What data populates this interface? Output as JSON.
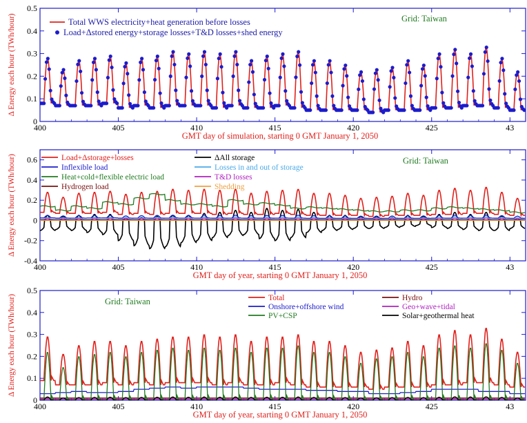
{
  "chart_data": [
    {
      "type": "line",
      "grid_tag": "Grid: Taiwan",
      "xlabel": "GMT day of simulation, starting 0 GMT January 1, 2050",
      "ylabel": "Δ Energy each hour (TWh/hour)",
      "xlim": [
        400,
        431
      ],
      "ylim": [
        0,
        0.5
      ],
      "xticks": [
        "400",
        "405",
        "410",
        "415",
        "420",
        "425",
        "43"
      ],
      "yticks": [
        "0",
        "0.1",
        "0.2",
        "0.3",
        "0.4",
        "0.5"
      ],
      "legend_position": "top-left",
      "series": [
        {
          "name": "Total WWS electricity+heat generation before losses",
          "color": "#e0201b",
          "style": "line",
          "daily_peaks": [
            0.28,
            0.23,
            0.27,
            0.28,
            0.29,
            0.26,
            0.28,
            0.29,
            0.31,
            0.3,
            0.31,
            0.3,
            0.31,
            0.27,
            0.29,
            0.3,
            0.31,
            0.27,
            0.27,
            0.25,
            0.22,
            0.23,
            0.24,
            0.27,
            0.25,
            0.3,
            0.32,
            0.3,
            0.33,
            0.28,
            0.22
          ],
          "daily_lows": [
            0.08,
            0.07,
            0.07,
            0.07,
            0.08,
            0.06,
            0.07,
            0.06,
            0.07,
            0.07,
            0.07,
            0.06,
            0.07,
            0.06,
            0.06,
            0.07,
            0.06,
            0.05,
            0.05,
            0.05,
            0.05,
            0.04,
            0.05,
            0.05,
            0.05,
            0.06,
            0.06,
            0.07,
            0.07,
            0.06,
            0.05
          ]
        },
        {
          "name": "Load+Δstored energy+storage losses+T&D losses+shed energy",
          "color": "#1c1ccc",
          "style": "dots",
          "daily_peaks": [
            0.28,
            0.23,
            0.27,
            0.28,
            0.29,
            0.26,
            0.28,
            0.29,
            0.31,
            0.3,
            0.31,
            0.3,
            0.31,
            0.27,
            0.29,
            0.3,
            0.31,
            0.27,
            0.27,
            0.25,
            0.22,
            0.23,
            0.24,
            0.27,
            0.25,
            0.3,
            0.32,
            0.3,
            0.33,
            0.28,
            0.22
          ],
          "daily_lows": [
            0.08,
            0.07,
            0.07,
            0.07,
            0.08,
            0.06,
            0.07,
            0.06,
            0.07,
            0.07,
            0.07,
            0.06,
            0.07,
            0.06,
            0.06,
            0.07,
            0.06,
            0.05,
            0.05,
            0.05,
            0.05,
            0.04,
            0.05,
            0.05,
            0.05,
            0.06,
            0.06,
            0.07,
            0.07,
            0.06,
            0.05
          ]
        }
      ]
    },
    {
      "type": "line",
      "grid_tag": "Grid: Taiwan",
      "xlabel": "GMT day of year, starting 0 GMT January 1, 2050",
      "ylabel": "Δ Energy each hour (TWh/hour)",
      "xlim": [
        400,
        431
      ],
      "ylim": [
        -0.4,
        0.7
      ],
      "xticks": [
        "400",
        "405",
        "410",
        "415",
        "420",
        "425",
        "43"
      ],
      "yticks": [
        "-0.4",
        "-0.2",
        "0",
        "0.2",
        "0.4",
        "0.6"
      ],
      "legend_position": "top-left",
      "series": [
        {
          "name": "Load+Δstorage+losses",
          "color": "#e0201b",
          "daily_peaks": [
            0.28,
            0.23,
            0.27,
            0.28,
            0.29,
            0.26,
            0.28,
            0.29,
            0.31,
            0.3,
            0.31,
            0.3,
            0.31,
            0.27,
            0.29,
            0.3,
            0.31,
            0.27,
            0.27,
            0.25,
            0.22,
            0.23,
            0.24,
            0.27,
            0.25,
            0.3,
            0.32,
            0.3,
            0.33,
            0.28,
            0.22
          ],
          "daily_lows": [
            0.08,
            0.07,
            0.07,
            0.07,
            0.08,
            0.06,
            0.07,
            0.06,
            0.07,
            0.07,
            0.07,
            0.06,
            0.07,
            0.06,
            0.06,
            0.07,
            0.06,
            0.05,
            0.05,
            0.05,
            0.05,
            0.04,
            0.05,
            0.05,
            0.05,
            0.06,
            0.06,
            0.07,
            0.07,
            0.06,
            0.05
          ]
        },
        {
          "name": "ΔAll storage",
          "color": "#000000",
          "daily_peaks": [
            0.05,
            0.04,
            0.05,
            0.06,
            0.06,
            0.02,
            0.03,
            0.04,
            0.05,
            0.05,
            0.07,
            0.08,
            0.1,
            0.08,
            0.12,
            0.1,
            0.11,
            0.08,
            0.05,
            0.05,
            0.04,
            0.04,
            0.03,
            0.05,
            0.04,
            0.06,
            0.08,
            0.06,
            0.08,
            0.04,
            0.02
          ],
          "daily_lows": [
            -0.1,
            -0.09,
            -0.1,
            -0.12,
            -0.14,
            -0.2,
            -0.25,
            -0.28,
            -0.26,
            -0.22,
            -0.2,
            -0.17,
            -0.15,
            -0.14,
            -0.18,
            -0.2,
            -0.17,
            -0.12,
            -0.1,
            -0.09,
            -0.08,
            -0.08,
            -0.07,
            -0.06,
            -0.05,
            -0.07,
            -0.08,
            -0.09,
            -0.1,
            -0.1,
            -0.08
          ]
        },
        {
          "name": "Inflexible load",
          "color": "#1c1ccc",
          "daily_peaks": [
            0.05,
            0.045,
            0.048,
            0.05,
            0.05,
            0.045,
            0.048,
            0.05,
            0.052,
            0.05,
            0.052,
            0.05,
            0.052,
            0.048,
            0.05,
            0.05,
            0.052,
            0.048,
            0.047,
            0.045,
            0.042,
            0.043,
            0.044,
            0.047,
            0.045,
            0.05,
            0.052,
            0.05,
            0.053,
            0.048,
            0.042
          ],
          "daily_lows": [
            0.025,
            0.022,
            0.023,
            0.024,
            0.025,
            0.022,
            0.023,
            0.022,
            0.023,
            0.023,
            0.023,
            0.022,
            0.023,
            0.022,
            0.022,
            0.023,
            0.022,
            0.021,
            0.021,
            0.021,
            0.021,
            0.02,
            0.021,
            0.021,
            0.021,
            0.022,
            0.022,
            0.023,
            0.023,
            0.022,
            0.021
          ]
        },
        {
          "name": "Losses in and out of storage",
          "color": "#4aa8e8",
          "daily_peaks": [
            0.03,
            0.028,
            0.03,
            0.032,
            0.033,
            0.03,
            0.032,
            0.033,
            0.035,
            0.034,
            0.035,
            0.034,
            0.035,
            0.031,
            0.033,
            0.034,
            0.035,
            0.031,
            0.031,
            0.029,
            0.026,
            0.027,
            0.028,
            0.031,
            0.029,
            0.034,
            0.036,
            0.034,
            0.037,
            0.032,
            0.026
          ],
          "daily_lows": [
            0.01,
            0.01,
            0.01,
            0.01,
            0.01,
            0.01,
            0.01,
            0.01,
            0.01,
            0.01,
            0.01,
            0.01,
            0.01,
            0.01,
            0.01,
            0.01,
            0.01,
            0.01,
            0.01,
            0.01,
            0.01,
            0.01,
            0.01,
            0.01,
            0.01,
            0.01,
            0.01,
            0.01,
            0.01,
            0.01,
            0.01
          ]
        },
        {
          "name": "Heat+cold+flexible electric load",
          "color": "#1f7a1f",
          "daily_levels": [
            0.14,
            0.1,
            0.14,
            0.12,
            0.18,
            0.16,
            0.22,
            0.26,
            0.2,
            0.16,
            0.16,
            0.14,
            0.2,
            0.16,
            0.17,
            0.15,
            0.12,
            0.13,
            0.12,
            0.11,
            0.1,
            0.09,
            0.09,
            0.1,
            0.1,
            0.12,
            0.13,
            0.12,
            0.11,
            0.1,
            0.08
          ]
        },
        {
          "name": "T&D losses",
          "color": "#b020c0",
          "daily_peaks": [
            0.02,
            0.018,
            0.02,
            0.02,
            0.021,
            0.019,
            0.02,
            0.021,
            0.022,
            0.021,
            0.022,
            0.021,
            0.022,
            0.02,
            0.021,
            0.021,
            0.022,
            0.02,
            0.02,
            0.019,
            0.017,
            0.018,
            0.018,
            0.02,
            0.019,
            0.021,
            0.022,
            0.021,
            0.023,
            0.02,
            0.017
          ],
          "daily_lows": [
            0.005,
            0.005,
            0.005,
            0.005,
            0.005,
            0.005,
            0.005,
            0.005,
            0.005,
            0.005,
            0.005,
            0.005,
            0.005,
            0.005,
            0.005,
            0.005,
            0.005,
            0.005,
            0.005,
            0.005,
            0.005,
            0.005,
            0.005,
            0.005,
            0.005,
            0.005,
            0.005,
            0.005,
            0.005,
            0.005,
            0.005
          ]
        },
        {
          "name": "Hydrogen load",
          "color": "#7a1010",
          "daily_levels": [
            0.005,
            0.005,
            0.005,
            0.005,
            0.005,
            0.005,
            0.005,
            0.005,
            0.005,
            0.005,
            0.005,
            0.005,
            0.005,
            0.005,
            0.005,
            0.005,
            0.005,
            0.005,
            0.005,
            0.005,
            0.005,
            0.005,
            0.005,
            0.005,
            0.005,
            0.005,
            0.005,
            0.005,
            0.005,
            0.005,
            0.005
          ]
        },
        {
          "name": "Shedding",
          "color": "#f0a040",
          "daily_levels": [
            0,
            0,
            0,
            0,
            0,
            0,
            0,
            0,
            0,
            0,
            0,
            0,
            0,
            0,
            0,
            0,
            0,
            0,
            0,
            0,
            0,
            0,
            0,
            0,
            0,
            0,
            0,
            0,
            0,
            0,
            0
          ]
        }
      ]
    },
    {
      "type": "line",
      "grid_tag": "Grid: Taiwan",
      "xlabel": "GMT day of year, starting 0 GMT January 1, 2050",
      "ylabel": "Δ Energy each hour (TWh/hour)",
      "xlim": [
        400,
        431
      ],
      "ylim": [
        0,
        0.5
      ],
      "xticks": [
        "400",
        "405",
        "410",
        "415",
        "420",
        "425",
        "43"
      ],
      "yticks": [
        "0",
        "0.1",
        "0.2",
        "0.3",
        "0.4",
        "0.5"
      ],
      "legend_position": "top-center",
      "series": [
        {
          "name": "Total",
          "color": "#e0201b",
          "daily_peaks": [
            0.29,
            0.21,
            0.25,
            0.27,
            0.27,
            0.25,
            0.27,
            0.28,
            0.29,
            0.29,
            0.3,
            0.29,
            0.3,
            0.27,
            0.29,
            0.29,
            0.3,
            0.27,
            0.27,
            0.25,
            0.22,
            0.23,
            0.24,
            0.27,
            0.25,
            0.3,
            0.32,
            0.3,
            0.33,
            0.28,
            0.22
          ],
          "daily_lows": [
            0.09,
            0.07,
            0.07,
            0.07,
            0.08,
            0.07,
            0.08,
            0.07,
            0.08,
            0.08,
            0.08,
            0.07,
            0.08,
            0.07,
            0.07,
            0.08,
            0.07,
            0.06,
            0.06,
            0.06,
            0.06,
            0.05,
            0.06,
            0.06,
            0.06,
            0.07,
            0.07,
            0.08,
            0.08,
            0.07,
            0.06
          ]
        },
        {
          "name": "Hydro",
          "color": "#7a1010",
          "daily_levels": [
            0.01,
            0.01,
            0.01,
            0.01,
            0.01,
            0.01,
            0.01,
            0.01,
            0.01,
            0.01,
            0.01,
            0.01,
            0.01,
            0.01,
            0.01,
            0.01,
            0.01,
            0.01,
            0.01,
            0.01,
            0.01,
            0.01,
            0.01,
            0.01,
            0.01,
            0.01,
            0.01,
            0.01,
            0.01,
            0.01,
            0.01
          ]
        },
        {
          "name": "Onshore+offshore wind",
          "color": "#1c1ccc",
          "daily_levels": [
            0.03,
            0.035,
            0.04,
            0.035,
            0.035,
            0.04,
            0.05,
            0.055,
            0.06,
            0.055,
            0.06,
            0.06,
            0.06,
            0.055,
            0.05,
            0.05,
            0.05,
            0.045,
            0.045,
            0.04,
            0.04,
            0.03,
            0.03,
            0.035,
            0.04,
            0.05,
            0.05,
            0.05,
            0.04,
            0.04,
            0.03
          ]
        },
        {
          "name": "Geo+wave+tidal",
          "color": "#b020c0",
          "daily_levels": [
            0.005,
            0.005,
            0.005,
            0.005,
            0.005,
            0.005,
            0.005,
            0.005,
            0.005,
            0.005,
            0.005,
            0.005,
            0.005,
            0.005,
            0.005,
            0.005,
            0.005,
            0.005,
            0.005,
            0.005,
            0.005,
            0.005,
            0.005,
            0.005,
            0.005,
            0.005,
            0.005,
            0.005,
            0.005,
            0.005,
            0.005
          ]
        },
        {
          "name": "PV+CSP",
          "color": "#1f7a1f",
          "daily_peaks": [
            0.22,
            0.15,
            0.2,
            0.21,
            0.22,
            0.2,
            0.22,
            0.23,
            0.24,
            0.23,
            0.24,
            0.23,
            0.24,
            0.22,
            0.24,
            0.24,
            0.25,
            0.22,
            0.22,
            0.2,
            0.17,
            0.19,
            0.2,
            0.22,
            0.2,
            0.24,
            0.25,
            0.24,
            0.26,
            0.23,
            0.17
          ]
        },
        {
          "name": "Solar+geothermal heat",
          "color": "#000000",
          "daily_peaks": [
            0.015,
            0.01,
            0.012,
            0.013,
            0.014,
            0.012,
            0.013,
            0.014,
            0.015,
            0.014,
            0.015,
            0.014,
            0.015,
            0.013,
            0.014,
            0.014,
            0.015,
            0.013,
            0.013,
            0.012,
            0.01,
            0.011,
            0.012,
            0.013,
            0.012,
            0.014,
            0.016,
            0.015,
            0.016,
            0.013,
            0.01
          ]
        }
      ]
    }
  ]
}
